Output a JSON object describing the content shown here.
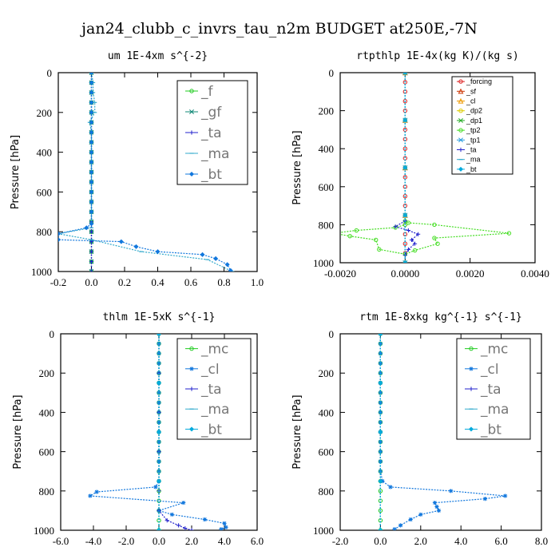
{
  "title": "jan24_clubb_c_invrs_tau_n2m  BUDGET at250E,-7N",
  "chart_data": [
    {
      "type": "line",
      "title": "um  1E-4xm s^{-2}",
      "ylabel": "Pressure [hPa]",
      "xlim": [
        -0.2,
        1.0
      ],
      "ylim": [
        1000,
        0
      ],
      "xticks": [
        "-0.2",
        "0.0",
        "0.2",
        "0.4",
        "0.6",
        "0.8",
        "1.0"
      ],
      "xtick_values": [
        -0.2,
        0.0,
        0.2,
        0.4,
        0.6,
        0.8,
        1.0
      ],
      "yticks": [
        "0",
        "200",
        "400",
        "600",
        "800",
        "1000"
      ],
      "ytick_values": [
        0,
        200,
        400,
        600,
        800,
        1000
      ],
      "legend_style": "big",
      "legend_location": "top-right",
      "series": [
        {
          "name": "_f",
          "color": "#22cc22",
          "marker": "circle",
          "x": [
            0,
            0,
            0,
            0,
            0,
            0,
            0,
            0,
            0,
            0,
            0,
            0,
            0,
            0,
            0,
            0,
            0,
            0,
            0,
            0,
            0
          ],
          "y": [
            0,
            50,
            100,
            150,
            200,
            250,
            300,
            350,
            400,
            450,
            500,
            550,
            600,
            650,
            700,
            750,
            800,
            850,
            900,
            950,
            1000
          ]
        },
        {
          "name": "_gf",
          "color": "#118877",
          "marker": "x",
          "x": [
            0,
            0,
            0,
            0,
            0,
            0,
            0,
            0,
            0,
            0,
            0,
            0,
            0,
            0,
            0,
            0,
            0,
            0,
            0,
            0,
            0
          ],
          "y": [
            0,
            50,
            100,
            150,
            200,
            250,
            300,
            350,
            400,
            450,
            500,
            550,
            600,
            650,
            700,
            750,
            800,
            850,
            900,
            950,
            1000
          ]
        },
        {
          "name": "_ta",
          "color": "#2222cc",
          "marker": "plus",
          "x": [
            0,
            0,
            0,
            0,
            0,
            0,
            0,
            0,
            0,
            0,
            0,
            0,
            0,
            0,
            0,
            0,
            0,
            0,
            0,
            0,
            0
          ],
          "y": [
            0,
            50,
            100,
            150,
            200,
            250,
            300,
            350,
            400,
            450,
            500,
            550,
            600,
            650,
            700,
            750,
            800,
            850,
            900,
            950,
            1000
          ]
        },
        {
          "name": "_ma",
          "color": "#33aacc",
          "marker": "dash",
          "x": [
            0,
            0.01,
            0.01,
            0.02,
            0.02,
            -0.01,
            0,
            0,
            0,
            0,
            0,
            0,
            0,
            0,
            0,
            0,
            -0.2,
            0.0,
            0.3,
            0.7,
            0.85
          ],
          "y": [
            0,
            50,
            100,
            150,
            200,
            250,
            300,
            350,
            400,
            450,
            500,
            550,
            600,
            650,
            700,
            780,
            810,
            840,
            900,
            940,
            1000
          ]
        },
        {
          "name": "_bt",
          "color": "#1177dd",
          "marker": "diamond",
          "x": [
            0.0,
            0.0,
            0.0,
            0.0,
            0.0,
            0.0,
            0.0,
            0.0,
            0.0,
            0.0,
            0.0,
            0.0,
            0.0,
            0.0,
            0.0,
            0.0,
            -0.03,
            -0.2,
            -0.2,
            0.18,
            0.27,
            0.4,
            0.67,
            0.75,
            0.82,
            0.84
          ],
          "y": [
            0,
            50,
            100,
            150,
            200,
            250,
            300,
            350,
            400,
            450,
            500,
            550,
            600,
            650,
            700,
            760,
            780,
            810,
            840,
            850,
            875,
            900,
            915,
            935,
            965,
            995
          ]
        }
      ]
    },
    {
      "type": "line",
      "title": "rtpthlp  1E-4x(kg K)/(kg s)",
      "ylabel": "Pressure [hPa]",
      "xlim": [
        -0.002,
        0.004
      ],
      "ylim": [
        1000,
        0
      ],
      "xticks": [
        "-0.0020",
        "0.0000",
        "0.0020",
        "0.0040"
      ],
      "xtick_values": [
        -0.002,
        0.0,
        0.002,
        0.004
      ],
      "yticks": [
        "0",
        "200",
        "400",
        "600",
        "800",
        "1000"
      ],
      "ytick_values": [
        0,
        200,
        400,
        600,
        800,
        1000
      ],
      "legend_style": "small",
      "legend_location": "top-right",
      "series": [
        {
          "name": "_forcing",
          "color": "#dd2222",
          "marker": "circle",
          "x": [
            0,
            0,
            0,
            0,
            0,
            0,
            0,
            0,
            0,
            0,
            0,
            0,
            0,
            0,
            0,
            0,
            0,
            0,
            0,
            0,
            0
          ],
          "y": [
            0,
            50,
            100,
            150,
            200,
            250,
            300,
            350,
            400,
            450,
            500,
            550,
            600,
            650,
            700,
            750,
            800,
            850,
            900,
            950,
            1000
          ]
        },
        {
          "name": "_sf",
          "color": "#cc3300",
          "marker": "tri",
          "x": [
            0,
            0,
            0,
            0,
            0
          ],
          "y": [
            0,
            250,
            500,
            750,
            1000
          ]
        },
        {
          "name": "_cl",
          "color": "#ee9900",
          "marker": "tri",
          "x": [
            0,
            0,
            0,
            0,
            0
          ],
          "y": [
            0,
            250,
            500,
            750,
            1000
          ]
        },
        {
          "name": "_dp2",
          "color": "#ddcc00",
          "marker": "circle",
          "x": [
            0,
            0,
            0,
            0,
            0
          ],
          "y": [
            0,
            250,
            500,
            750,
            1000
          ]
        },
        {
          "name": "_dp1",
          "color": "#22aa22",
          "marker": "x",
          "x": [
            0,
            0,
            0,
            0,
            0
          ],
          "y": [
            0,
            250,
            500,
            750,
            1000
          ]
        },
        {
          "name": "_tp2",
          "color": "#44dd22",
          "marker": "circle",
          "x": [
            0,
            0.0001,
            0.0009,
            0.0032,
            0.0009,
            0.001,
            0.0003,
            0.0,
            -0.0008,
            -0.0009,
            -0.0017,
            -0.0022,
            -0.0015,
            -0.0003,
            0.0
          ],
          "y": [
            780,
            790,
            800,
            845,
            870,
            900,
            935,
            955,
            930,
            880,
            860,
            845,
            830,
            815,
            800
          ]
        },
        {
          "name": "_tp1",
          "color": "#2299dd",
          "marker": "x",
          "x": [
            0,
            0,
            0,
            0,
            0
          ],
          "y": [
            0,
            250,
            500,
            750,
            1000
          ]
        },
        {
          "name": "_ta",
          "color": "#2222cc",
          "marker": "plus",
          "x": [
            0,
            -0.0003,
            0.0001,
            0.0004,
            0.0002,
            0.0003,
            0.0001,
            0
          ],
          "y": [
            780,
            810,
            830,
            850,
            880,
            900,
            930,
            960
          ]
        },
        {
          "name": "_ma",
          "color": "#33aacc",
          "marker": "dash",
          "x": [
            0,
            0,
            0,
            0,
            0
          ],
          "y": [
            0,
            250,
            500,
            750,
            1000
          ]
        },
        {
          "name": "_bt",
          "color": "#00aadd",
          "marker": "diamond",
          "x": [
            0,
            0,
            0,
            0,
            0
          ],
          "y": [
            0,
            250,
            500,
            750,
            1000
          ]
        }
      ]
    },
    {
      "type": "line",
      "title": "thlm  1E-5xK s^{-1}",
      "ylabel": "Pressure [hPa]",
      "xlim": [
        -6.0,
        6.0
      ],
      "ylim": [
        1000,
        0
      ],
      "xticks": [
        "-6.0",
        "-4.0",
        "-2.0",
        "0.0",
        "2.0",
        "4.0",
        "6.0"
      ],
      "xtick_values": [
        -6.0,
        -4.0,
        -2.0,
        0.0,
        2.0,
        4.0,
        6.0
      ],
      "yticks": [
        "0",
        "200",
        "400",
        "600",
        "800",
        "1000"
      ],
      "ytick_values": [
        0,
        200,
        400,
        600,
        800,
        1000
      ],
      "legend_style": "big",
      "legend_location": "top-right",
      "series": [
        {
          "name": "_mc",
          "color": "#22cc22",
          "marker": "circle",
          "x": [
            0,
            0,
            0,
            0,
            0,
            0,
            0,
            0,
            0,
            0,
            0,
            0,
            0,
            0,
            0,
            0,
            0,
            0,
            0,
            0,
            0
          ],
          "y": [
            0,
            50,
            100,
            150,
            200,
            250,
            300,
            350,
            400,
            450,
            500,
            550,
            600,
            650,
            700,
            750,
            800,
            850,
            900,
            950,
            1000
          ]
        },
        {
          "name": "_cl",
          "color": "#1177dd",
          "marker": "star",
          "x": [
            0,
            0,
            0,
            0,
            0,
            0,
            0,
            0,
            0,
            0,
            0,
            0,
            0,
            0,
            0,
            0,
            -0.2,
            -3.8,
            -4.2,
            1.5,
            0,
            0.8,
            2.8,
            4.0,
            4.1,
            3.8
          ],
          "y": [
            0,
            50,
            100,
            150,
            200,
            250,
            300,
            350,
            400,
            450,
            500,
            550,
            600,
            650,
            700,
            750,
            780,
            805,
            825,
            860,
            900,
            920,
            945,
            965,
            985,
            995
          ]
        },
        {
          "name": "_ta",
          "color": "#2222cc",
          "marker": "plus",
          "x": [
            0,
            0,
            0,
            0,
            0,
            0,
            0.5,
            1.2,
            1.6,
            2.0
          ],
          "y": [
            0,
            200,
            400,
            600,
            800,
            900,
            950,
            975,
            990,
            1000
          ]
        },
        {
          "name": "_ma",
          "color": "#33aacc",
          "marker": "dash",
          "x": [
            0,
            0,
            0,
            0,
            0
          ],
          "y": [
            0,
            250,
            500,
            750,
            1000
          ]
        },
        {
          "name": "_bt",
          "color": "#00aadd",
          "marker": "diamond",
          "x": [
            0,
            0,
            0,
            0,
            0
          ],
          "y": [
            0,
            250,
            500,
            750,
            1000
          ]
        }
      ]
    },
    {
      "type": "line",
      "title": "rtm  1E-8xkg kg^{-1} s^{-1}",
      "ylabel": "Pressure [hPa]",
      "xlim": [
        -2.0,
        8.0
      ],
      "ylim": [
        1000,
        0
      ],
      "xticks": [
        "-2.0",
        "0.0",
        "2.0",
        "4.0",
        "6.0",
        "8.0"
      ],
      "xtick_values": [
        -2.0,
        0.0,
        2.0,
        4.0,
        6.0,
        8.0
      ],
      "yticks": [
        "0",
        "200",
        "400",
        "600",
        "800",
        "1000"
      ],
      "ytick_values": [
        0,
        200,
        400,
        600,
        800,
        1000
      ],
      "legend_style": "big",
      "legend_location": "top-right",
      "series": [
        {
          "name": "_mc",
          "color": "#22cc22",
          "marker": "circle",
          "x": [
            0,
            0,
            0,
            0,
            0,
            0,
            0,
            0,
            0,
            0,
            0,
            0,
            0,
            0,
            0,
            0,
            0,
            0,
            0,
            0,
            0
          ],
          "y": [
            0,
            50,
            100,
            150,
            200,
            250,
            300,
            350,
            400,
            450,
            500,
            550,
            600,
            650,
            700,
            750,
            800,
            850,
            900,
            950,
            1000
          ]
        },
        {
          "name": "_cl",
          "color": "#1177dd",
          "marker": "star",
          "x": [
            0,
            0,
            0,
            0,
            0,
            0,
            0,
            0,
            0,
            0,
            0,
            0,
            0,
            0,
            0,
            0.1,
            0.5,
            3.5,
            6.2,
            5.2,
            2.7,
            2.8,
            2.9,
            2.0,
            1.5,
            1.0,
            0.7
          ],
          "y": [
            0,
            50,
            100,
            150,
            200,
            250,
            300,
            350,
            400,
            450,
            500,
            550,
            600,
            650,
            700,
            750,
            780,
            800,
            825,
            840,
            860,
            880,
            900,
            920,
            945,
            975,
            995
          ]
        },
        {
          "name": "_ta",
          "color": "#2222cc",
          "marker": "plus",
          "x": [
            0,
            0,
            0,
            0,
            0
          ],
          "y": [
            0,
            250,
            500,
            750,
            1000
          ]
        },
        {
          "name": "_ma",
          "color": "#33aacc",
          "marker": "dash",
          "x": [
            0,
            0,
            0,
            0,
            0
          ],
          "y": [
            0,
            250,
            500,
            750,
            1000
          ]
        },
        {
          "name": "_bt",
          "color": "#00aadd",
          "marker": "diamond",
          "x": [
            0,
            0,
            0,
            0,
            0
          ],
          "y": [
            0,
            250,
            500,
            750,
            1000
          ]
        }
      ]
    }
  ]
}
